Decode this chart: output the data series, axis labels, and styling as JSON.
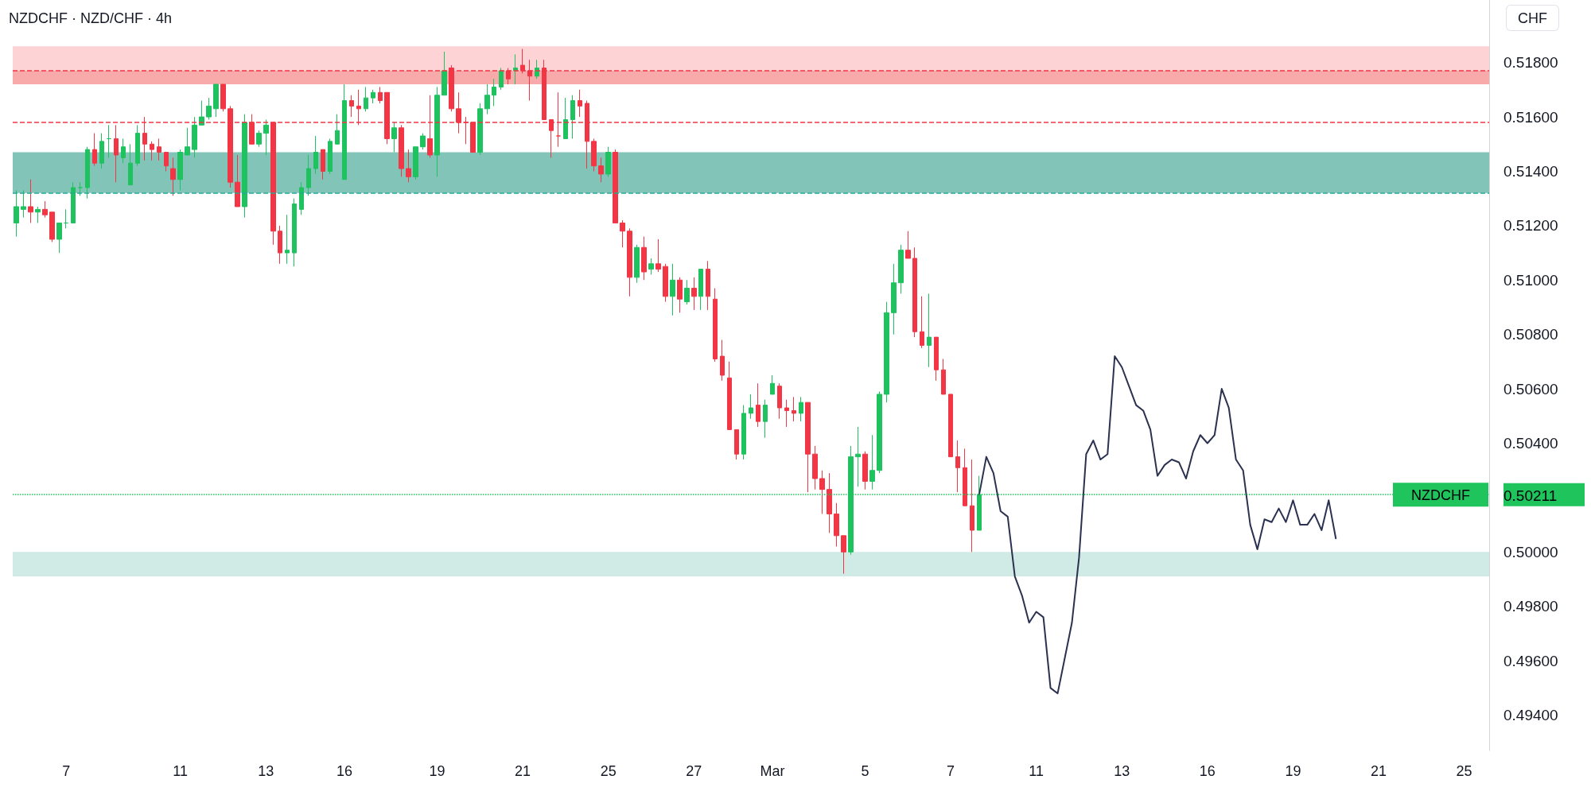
{
  "chart_data": {
    "type": "candlestick",
    "title": "NZDCHF · NZD/CHF · 4h",
    "ylabel": "CHF",
    "categories": [
      null,
      null,
      null,
      null,
      null,
      null,
      null,
      "7",
      null,
      null,
      null,
      null,
      null,
      null,
      null,
      null,
      null,
      null,
      null,
      null,
      null,
      null,
      null,
      "11",
      null,
      null,
      null,
      null,
      null,
      null,
      null,
      null,
      null,
      null,
      null,
      "13",
      null,
      null,
      null,
      null,
      null,
      null,
      null,
      null,
      null,
      null,
      "16",
      null,
      null,
      null,
      null,
      null,
      null,
      null,
      null,
      null,
      null,
      null,
      null,
      "19",
      null,
      null,
      null,
      null,
      null,
      null,
      null,
      null,
      null,
      null,
      null,
      "21",
      null,
      null,
      null,
      null,
      null,
      null,
      null,
      null,
      null,
      null,
      null,
      "25",
      null,
      null,
      null,
      null,
      null,
      null,
      null,
      null,
      null,
      null,
      null,
      "27",
      null,
      null,
      null,
      null,
      null,
      null,
      null,
      null,
      null,
      null,
      "Mar",
      null,
      null,
      null,
      null,
      null,
      null,
      null,
      null,
      null,
      null,
      null,
      null,
      "5",
      null,
      null,
      null,
      null,
      null,
      null,
      null,
      null,
      null,
      null,
      null,
      "7",
      null,
      null,
      null,
      null,
      null,
      null,
      null,
      null,
      null,
      null,
      null,
      "11",
      null,
      null,
      null,
      null,
      null,
      null,
      null,
      null,
      null,
      null,
      null,
      "13",
      null,
      null,
      null,
      null,
      null,
      null,
      null,
      null,
      null,
      null,
      null,
      "16",
      null,
      null,
      null,
      null,
      null,
      null,
      null,
      null,
      null,
      null,
      null,
      "19",
      null,
      null,
      null,
      null,
      null,
      null,
      null,
      null,
      null,
      null,
      null,
      "21",
      null,
      null,
      null,
      null,
      null,
      null,
      null,
      null,
      null,
      null,
      null,
      "25",
      null,
      null,
      null
    ],
    "ohlc": [
      [
        0.5121,
        0.5133,
        0.5116,
        0.5127
      ],
      [
        0.5126,
        0.5133,
        0.5123,
        0.5127
      ],
      [
        0.5127,
        0.5137,
        0.5121,
        0.5125
      ],
      [
        0.5125,
        0.5127,
        0.5121,
        0.5126
      ],
      [
        0.5126,
        0.5129,
        0.5123,
        0.5124
      ],
      [
        0.5125,
        0.5125,
        0.5114,
        0.5115
      ],
      [
        0.5115,
        0.5121,
        0.511,
        0.5121
      ],
      [
        0.5121,
        0.5126,
        0.5119,
        0.5121
      ],
      [
        0.5121,
        0.5136,
        0.5121,
        0.5134
      ],
      [
        0.5134,
        0.5136,
        0.5131,
        0.5134
      ],
      [
        0.5134,
        0.5149,
        0.513,
        0.5148
      ],
      [
        0.5148,
        0.5154,
        0.5142,
        0.5143
      ],
      [
        0.5143,
        0.5154,
        0.5141,
        0.5151
      ],
      [
        0.5152,
        0.5157,
        0.5145,
        0.5152
      ],
      [
        0.5152,
        0.5157,
        0.5136,
        0.5146
      ],
      [
        0.5145,
        0.5152,
        0.5143,
        0.5149
      ],
      [
        0.5135,
        0.515,
        0.5135,
        0.5143
      ],
      [
        0.5143,
        0.5157,
        0.5142,
        0.5154
      ],
      [
        0.5154,
        0.516,
        0.5144,
        0.515
      ],
      [
        0.515,
        0.5151,
        0.5144,
        0.5148
      ],
      [
        0.5149,
        0.5152,
        0.5144,
        0.5147
      ],
      [
        0.5147,
        0.5147,
        0.514,
        0.5142
      ],
      [
        0.5141,
        0.5145,
        0.5131,
        0.5137
      ],
      [
        0.5137,
        0.5148,
        0.5133,
        0.5147
      ],
      [
        0.5146,
        0.5156,
        0.5146,
        0.5149
      ],
      [
        0.5148,
        0.516,
        0.5145,
        0.5157
      ],
      [
        0.5157,
        0.5166,
        0.5157,
        0.516
      ],
      [
        0.516,
        0.5167,
        0.5159,
        0.5164
      ],
      [
        0.5163,
        0.5172,
        0.516,
        0.5172
      ],
      [
        0.5172,
        0.5172,
        0.5162,
        0.5163
      ],
      [
        0.5163,
        0.5164,
        0.5134,
        0.5136
      ],
      [
        0.5136,
        0.5146,
        0.5127,
        0.5127
      ],
      [
        0.5127,
        0.5161,
        0.5123,
        0.5158
      ],
      [
        0.5158,
        0.5161,
        0.515,
        0.515
      ],
      [
        0.515,
        0.5155,
        0.5149,
        0.5154
      ],
      [
        0.5154,
        0.5159,
        0.5146,
        0.5157
      ],
      [
        0.5158,
        0.5158,
        0.5113,
        0.5118
      ],
      [
        0.5118,
        0.512,
        0.5106,
        0.511
      ],
      [
        0.511,
        0.5124,
        0.5106,
        0.5111
      ],
      [
        0.511,
        0.513,
        0.5105,
        0.5128
      ],
      [
        0.5126,
        0.5136,
        0.5124,
        0.5134
      ],
      [
        0.5134,
        0.5146,
        0.5131,
        0.5141
      ],
      [
        0.5141,
        0.5153,
        0.5139,
        0.5147
      ],
      [
        0.5148,
        0.5148,
        0.5137,
        0.514
      ],
      [
        0.514,
        0.5152,
        0.5139,
        0.5151
      ],
      [
        0.515,
        0.5161,
        0.515,
        0.5155
      ],
      [
        0.5137,
        0.5172,
        0.5137,
        0.5166
      ],
      [
        0.5166,
        0.5168,
        0.516,
        0.5164
      ],
      [
        0.5164,
        0.517,
        0.5157,
        0.5163
      ],
      [
        0.5163,
        0.5171,
        0.5162,
        0.5167
      ],
      [
        0.5167,
        0.517,
        0.5165,
        0.5169
      ],
      [
        0.5169,
        0.5171,
        0.5165,
        0.5166
      ],
      [
        0.5169,
        0.5169,
        0.515,
        0.5152
      ],
      [
        0.5152,
        0.5158,
        0.5147,
        0.5156
      ],
      [
        0.5156,
        0.5157,
        0.5138,
        0.5141
      ],
      [
        0.5141,
        0.5148,
        0.5136,
        0.5138
      ],
      [
        0.5138,
        0.5149,
        0.5137,
        0.5149
      ],
      [
        0.5149,
        0.5154,
        0.5148,
        0.5153
      ],
      [
        0.5152,
        0.5168,
        0.5145,
        0.5146
      ],
      [
        0.5146,
        0.5171,
        0.5138,
        0.5168
      ],
      [
        0.5168,
        0.5184,
        0.5168,
        0.5177
      ],
      [
        0.5178,
        0.5179,
        0.5162,
        0.5163
      ],
      [
        0.5163,
        0.5169,
        0.5154,
        0.5158
      ],
      [
        0.5158,
        0.516,
        0.515,
        0.5158
      ],
      [
        0.5158,
        0.5158,
        0.5147,
        0.5147
      ],
      [
        0.5147,
        0.5165,
        0.5146,
        0.5163
      ],
      [
        0.5163,
        0.5172,
        0.5161,
        0.5168
      ],
      [
        0.5168,
        0.5174,
        0.5164,
        0.5171
      ],
      [
        0.5171,
        0.5178,
        0.517,
        0.5177
      ],
      [
        0.5177,
        0.5178,
        0.5172,
        0.5174
      ],
      [
        0.5177,
        0.5183,
        0.5172,
        0.5178
      ],
      [
        0.5179,
        0.5185,
        0.5176,
        0.5177
      ],
      [
        0.5177,
        0.5181,
        0.5166,
        0.5175
      ],
      [
        0.5175,
        0.5181,
        0.5174,
        0.5178
      ],
      [
        0.5178,
        0.5181,
        0.5159,
        0.5159
      ],
      [
        0.5159,
        0.5159,
        0.5145,
        0.5155
      ],
      [
        0.5153,
        0.5169,
        0.5149,
        0.5153
      ],
      [
        0.5152,
        0.5167,
        0.5152,
        0.5159
      ],
      [
        0.5159,
        0.5168,
        0.5152,
        0.5166
      ],
      [
        0.5166,
        0.517,
        0.516,
        0.5164
      ],
      [
        0.5165,
        0.5166,
        0.5141,
        0.5151
      ],
      [
        0.5151,
        0.5152,
        0.514,
        0.5142
      ],
      [
        0.5142,
        0.5145,
        0.5136,
        0.5139
      ],
      [
        0.5139,
        0.5149,
        0.5138,
        0.5147
      ],
      [
        0.5147,
        0.5148,
        0.5121,
        0.5121
      ],
      [
        0.5121,
        0.5122,
        0.5112,
        0.5118
      ],
      [
        0.5118,
        0.5119,
        0.5094,
        0.5101
      ],
      [
        0.5101,
        0.5113,
        0.5099,
        0.5112
      ],
      [
        0.5112,
        0.5116,
        0.51,
        0.5103
      ],
      [
        0.5104,
        0.5108,
        0.5102,
        0.5106
      ],
      [
        0.5106,
        0.5115,
        0.5103,
        0.5104
      ],
      [
        0.5105,
        0.5106,
        0.5092,
        0.5094
      ],
      [
        0.5094,
        0.5106,
        0.5087,
        0.51
      ],
      [
        0.51,
        0.5101,
        0.5088,
        0.5093
      ],
      [
        0.5092,
        0.51,
        0.5091,
        0.5097
      ],
      [
        0.5097,
        0.5101,
        0.5089,
        0.5094
      ],
      [
        0.5094,
        0.5104,
        0.5089,
        0.5104
      ],
      [
        0.5104,
        0.5107,
        0.5089,
        0.5094
      ],
      [
        0.5093,
        0.5097,
        0.507,
        0.5071
      ],
      [
        0.5072,
        0.5078,
        0.5063,
        0.5065
      ],
      [
        0.5064,
        0.507,
        0.5045,
        0.5045
      ],
      [
        0.5045,
        0.5045,
        0.5034,
        0.5036
      ],
      [
        0.5036,
        0.5054,
        0.5034,
        0.5051
      ],
      [
        0.5051,
        0.5058,
        0.5049,
        0.5053
      ],
      [
        0.5054,
        0.5062,
        0.5046,
        0.5048
      ],
      [
        0.5048,
        0.5056,
        0.5042,
        0.5054
      ],
      [
        0.5058,
        0.5065,
        0.5058,
        0.5062
      ],
      [
        0.5061,
        0.5062,
        0.5049,
        0.5053
      ],
      [
        0.5053,
        0.5056,
        0.5046,
        0.5052
      ],
      [
        0.5052,
        0.5057,
        0.5048,
        0.5051
      ],
      [
        0.5051,
        0.5057,
        0.5048,
        0.5055
      ],
      [
        0.5055,
        0.5055,
        0.5022,
        0.5036
      ],
      [
        0.5036,
        0.5039,
        0.5023,
        0.5027
      ],
      [
        0.5027,
        0.503,
        0.5014,
        0.5023
      ],
      [
        0.5023,
        0.5029,
        0.5007,
        0.5014
      ],
      [
        0.5014,
        0.5018,
        0.5002,
        0.5006
      ],
      [
        0.5006,
        0.5006,
        0.4992,
        0.5
      ],
      [
        0.5,
        0.5039,
        0.4999,
        0.5035
      ],
      [
        0.5035,
        0.5046,
        0.5024,
        0.5036
      ],
      [
        0.5036,
        0.5037,
        0.5023,
        0.5026
      ],
      [
        0.5026,
        0.5043,
        0.5023,
        0.503
      ],
      [
        0.503,
        0.5059,
        0.5029,
        0.5058
      ],
      [
        0.5058,
        0.5092,
        0.5055,
        0.5088
      ],
      [
        0.5088,
        0.5106,
        0.508,
        0.5099
      ],
      [
        0.5099,
        0.5113,
        0.5095,
        0.5111
      ],
      [
        0.5111,
        0.5118,
        0.5108,
        0.5108
      ],
      [
        0.5108,
        0.5112,
        0.5079,
        0.5081
      ],
      [
        0.5081,
        0.5094,
        0.5075,
        0.5076
      ],
      [
        0.5076,
        0.5095,
        0.5068,
        0.5079
      ],
      [
        0.5079,
        0.5079,
        0.5063,
        0.5067
      ],
      [
        0.5067,
        0.5071,
        0.5058,
        0.5058
      ],
      [
        0.5058,
        0.5058,
        0.5035,
        0.5035
      ],
      [
        0.5035,
        0.5041,
        0.5022,
        0.5031
      ],
      [
        0.5031,
        0.5038,
        0.5017,
        0.5017
      ],
      [
        0.5017,
        0.5034,
        0.5,
        0.5008
      ],
      [
        0.5008,
        0.5028,
        0.5008,
        0.50211
      ],
      null,
      null,
      null,
      null,
      null,
      null,
      null,
      null,
      null,
      null,
      null,
      null,
      null,
      null,
      null,
      null,
      null,
      null,
      null,
      null,
      null,
      null,
      null,
      null,
      null,
      null,
      null,
      null,
      null,
      null,
      null,
      null,
      null,
      null,
      null,
      null,
      null,
      null,
      null,
      null,
      null,
      null,
      null,
      null,
      null,
      null,
      null,
      null,
      null,
      null,
      null,
      null,
      null,
      null,
      null,
      null,
      null,
      null,
      null,
      null,
      null,
      null,
      null,
      null,
      null,
      null,
      null,
      null,
      null,
      null,
      null
    ],
    "colors": [
      "#1ec25f",
      "#1ec25f",
      "#f23645",
      "#1ec25f",
      "#f23645",
      "#f23645",
      "#1ec25f",
      "#1ec25f",
      "#1ec25f",
      "#1ec25f",
      "#1ec25f",
      "#f23645",
      "#1ec25f",
      "#1ec25f",
      "#f23645",
      "#1ec25f",
      "#1ec25f",
      "#1ec25f",
      "#f23645",
      "#f23645",
      "#f23645",
      "#f23645",
      "#f23645",
      "#1ec25f",
      "#1ec25f",
      "#1ec25f",
      "#1ec25f",
      "#1ec25f",
      "#1ec25f",
      "#f23645",
      "#f23645",
      "#f23645",
      "#1ec25f",
      "#f23645",
      "#1ec25f",
      "#1ec25f",
      "#f23645",
      "#f23645",
      "#1ec25f",
      "#1ec25f",
      "#1ec25f",
      "#1ec25f",
      "#1ec25f",
      "#f23645",
      "#1ec25f",
      "#1ec25f",
      "#1ec25f",
      "#f23645",
      "#f23645",
      "#1ec25f",
      "#1ec25f",
      "#f23645",
      "#f23645",
      "#1ec25f",
      "#f23645",
      "#f23645",
      "#1ec25f",
      "#1ec25f",
      "#f23645",
      "#1ec25f",
      "#1ec25f",
      "#f23645",
      "#f23645",
      "#f23645",
      "#f23645",
      "#1ec25f",
      "#1ec25f",
      "#1ec25f",
      "#1ec25f",
      "#f23645",
      "#1ec25f",
      "#f23645",
      "#f23645",
      "#1ec25f",
      "#f23645",
      "#f23645",
      "#f23645",
      "#1ec25f",
      "#1ec25f",
      "#f23645",
      "#f23645",
      "#f23645",
      "#f23645",
      "#1ec25f",
      "#f23645",
      "#f23645",
      "#f23645",
      "#1ec25f",
      "#f23645",
      "#1ec25f",
      "#f23645",
      "#f23645",
      "#1ec25f",
      "#f23645",
      "#1ec25f",
      "#f23645",
      "#1ec25f",
      "#f23645",
      "#f23645",
      "#f23645",
      "#f23645",
      "#f23645",
      "#1ec25f",
      "#1ec25f",
      "#f23645",
      "#1ec25f",
      "#1ec25f",
      "#f23645",
      "#f23645",
      "#f23645",
      "#1ec25f",
      "#f23645",
      "#f23645",
      "#f23645",
      "#f23645",
      "#f23645",
      "#f23645",
      "#1ec25f",
      "#1ec25f",
      "#f23645",
      "#1ec25f",
      "#1ec25f",
      "#1ec25f",
      "#1ec25f",
      "#1ec25f",
      "#f23645",
      "#f23645",
      "#f23645",
      "#1ec25f",
      "#f23645",
      "#f23645",
      "#f23645",
      "#f23645",
      "#f23645",
      "#f23645",
      "#1ec25f",
      null,
      null,
      null,
      null,
      null,
      null,
      null,
      null,
      null,
      null,
      null,
      null,
      null,
      null,
      null,
      null,
      null,
      null,
      null,
      null,
      null,
      null,
      null,
      null,
      null,
      null,
      null,
      null,
      null,
      null,
      null,
      null,
      null,
      null,
      null,
      null,
      null,
      null,
      null,
      null,
      null,
      null,
      null,
      null,
      null,
      null,
      null,
      null,
      null,
      null,
      null,
      null,
      null,
      null,
      null,
      null,
      null,
      null,
      null,
      null,
      null,
      null,
      null,
      null,
      null,
      null,
      null,
      null,
      null,
      null,
      null
    ],
    "series": [
      {
        "type": "line",
        "color": "#2b3150",
        "values": [
          null,
          null,
          null,
          null,
          null,
          null,
          null,
          null,
          null,
          null,
          null,
          null,
          null,
          null,
          null,
          null,
          null,
          null,
          null,
          null,
          null,
          null,
          null,
          null,
          null,
          null,
          null,
          null,
          null,
          null,
          null,
          null,
          null,
          null,
          null,
          null,
          null,
          null,
          null,
          null,
          null,
          null,
          null,
          null,
          null,
          null,
          null,
          null,
          null,
          null,
          null,
          null,
          null,
          null,
          null,
          null,
          null,
          null,
          null,
          null,
          null,
          null,
          null,
          null,
          null,
          null,
          null,
          null,
          null,
          null,
          null,
          null,
          null,
          null,
          null,
          null,
          null,
          null,
          null,
          null,
          null,
          null,
          null,
          null,
          null,
          null,
          null,
          null,
          null,
          null,
          null,
          null,
          null,
          null,
          null,
          null,
          null,
          null,
          null,
          null,
          null,
          null,
          null,
          null,
          null,
          null,
          null,
          null,
          null,
          null,
          null,
          null,
          null,
          null,
          null,
          null,
          null,
          null,
          null,
          null,
          null,
          null,
          null,
          null,
          null,
          null,
          null,
          null,
          null,
          null,
          null,
          null,
          null,
          null,
          null,
          0.50211,
          0.5035,
          0.5029,
          0.5015,
          0.5013,
          0.4991,
          0.4984,
          0.4974,
          0.4978,
          0.4976,
          0.495,
          0.4948,
          0.4961,
          0.4974,
          0.4998,
          0.5036,
          0.5041,
          0.5034,
          0.5036,
          0.5072,
          0.5068,
          0.5061,
          0.5054,
          0.5052,
          0.5045,
          0.5028,
          0.5032,
          0.5034,
          0.5033,
          0.5027,
          0.5037,
          0.5043,
          0.504,
          0.5043,
          0.506,
          0.5053,
          0.5034,
          0.503,
          0.501,
          0.5001,
          0.5012,
          0.5011,
          0.5016,
          0.5011,
          0.5019,
          0.501,
          0.501,
          0.5014,
          0.5008,
          0.5019,
          0.5005,
          null,
          null,
          null,
          null,
          null,
          null,
          null,
          null,
          null,
          null,
          null,
          null,
          null,
          null,
          null,
          null,
          null,
          null,
          null,
          null,
          null
        ]
      }
    ],
    "ylim": [
      0.4927,
      0.5203
    ],
    "yticks": [
      {
        "value": 0.494,
        "label": "0.49400"
      },
      {
        "value": 0.496,
        "label": "0.49600"
      },
      {
        "value": 0.498,
        "label": "0.49800"
      },
      {
        "value": 0.5,
        "label": "0.50000"
      },
      {
        "value": 0.50211,
        "label": "0.50211"
      },
      {
        "value": 0.504,
        "label": "0.50400"
      },
      {
        "value": 0.506,
        "label": "0.50600"
      },
      {
        "value": 0.508,
        "label": "0.50800"
      },
      {
        "value": 0.51,
        "label": "0.51000"
      },
      {
        "value": 0.512,
        "label": "0.51200"
      },
      {
        "value": 0.514,
        "label": "0.51400"
      },
      {
        "value": 0.516,
        "label": "0.51600"
      },
      {
        "value": 0.518,
        "label": "0.51800"
      }
    ],
    "bands": [
      {
        "axis": "y",
        "from": 0.5177,
        "to": 0.5186,
        "color": "#fdd3d6"
      },
      {
        "axis": "y",
        "from": 0.5172,
        "to": 0.5177,
        "color": "#f8a9a9"
      },
      {
        "axis": "y",
        "from": 0.5132,
        "to": 0.5147,
        "color": "#82c4b8"
      },
      {
        "axis": "y",
        "from": 0.4991,
        "to": 0.5,
        "color": "#d0eae6"
      }
    ],
    "ref_lines": [
      {
        "axis": "y",
        "value": 0.5158,
        "color": "#f23645",
        "line_style": "dashed"
      },
      {
        "axis": "y",
        "value": 0.5177,
        "color": "#f23645",
        "line_style": "dashed"
      },
      {
        "axis": "y",
        "value": 0.5132,
        "color": "#22ab94",
        "line_style": "dashed"
      },
      {
        "axis": "y",
        "value": 0.50211,
        "label": "NZDCHF",
        "color": "#1fc45c",
        "line_style": "dotted"
      }
    ]
  }
}
